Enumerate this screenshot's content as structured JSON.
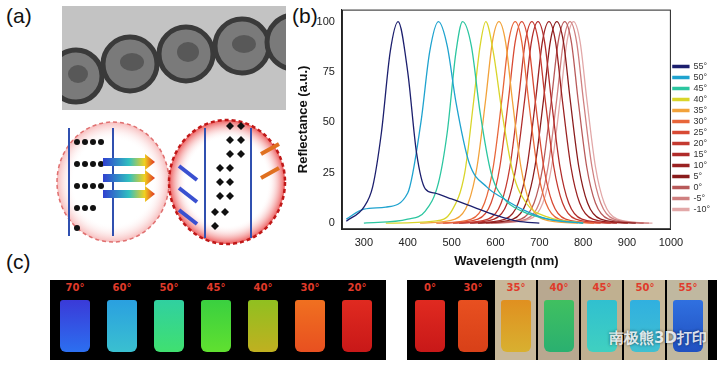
{
  "panels": {
    "a": {
      "label": "(a)"
    },
    "b": {
      "label": "(b)"
    },
    "c": {
      "label": "(c)",
      "left_vials": [
        "70°",
        "60°",
        "50°",
        "45°",
        "40°",
        "30°",
        "20°"
      ],
      "right_vials": [
        "0°",
        "30°",
        "35°",
        "40°",
        "45°",
        "50°",
        "55°"
      ],
      "watermark": "南极熊3D打印"
    }
  },
  "chart_data": {
    "type": "line",
    "x_label": "Wavelength (nm)",
    "y_label": "Reflectance (a.u.)",
    "xlim": [
      250,
      1000
    ],
    "xticks": [
      300,
      400,
      500,
      600,
      700,
      800,
      900,
      1000
    ],
    "ylim": [
      -3,
      106
    ],
    "yticks": [
      0,
      25,
      50,
      75,
      100
    ],
    "grid": false,
    "legend": "right",
    "marker": "none",
    "line_style": "solid",
    "series": [
      {
        "name": "55°",
        "color": "#1c1f6e",
        "x": [
          260,
          300,
          320,
          340,
          360,
          378,
          400,
          420,
          440,
          460,
          500,
          550,
          600,
          650,
          700
        ],
        "values": [
          1,
          8,
          18,
          45,
          85,
          100,
          75,
          35,
          17,
          15,
          12,
          8,
          4,
          1,
          0
        ]
      },
      {
        "name": "50°",
        "color": "#1fa3cf",
        "x": [
          260,
          300,
          350,
          400,
          430,
          450,
          470,
          490,
          510,
          540,
          580,
          620,
          660,
          720,
          800
        ],
        "values": [
          2,
          7,
          8,
          15,
          50,
          85,
          100,
          88,
          60,
          30,
          18,
          12,
          7,
          2,
          0
        ]
      },
      {
        "name": "45°",
        "color": "#2cc6a0",
        "x": [
          300,
          400,
          440,
          470,
          490,
          510,
          525,
          545,
          565,
          590,
          620,
          660,
          720,
          800
        ],
        "values": [
          0,
          2,
          6,
          20,
          45,
          85,
          100,
          88,
          55,
          25,
          12,
          6,
          2,
          0
        ]
      },
      {
        "name": "40°",
        "color": "#d9d52a",
        "x": [
          350,
          460,
          500,
          530,
          550,
          565,
          578,
          595,
          615,
          640,
          670,
          720,
          800
        ],
        "values": [
          0,
          1,
          6,
          25,
          60,
          88,
          100,
          85,
          55,
          25,
          10,
          3,
          0
        ]
      },
      {
        "name": "35°",
        "color": "#f2a23a",
        "x": [
          428,
          508,
          538,
          558,
          578,
          593,
          608,
          623,
          638,
          658,
          678,
          708,
          788
        ],
        "values": [
          0,
          2,
          10,
          28,
          62,
          90,
          100,
          90,
          62,
          28,
          10,
          2,
          0
        ]
      },
      {
        "name": "30°",
        "color": "#e8663a",
        "x": [
          465,
          545,
          575,
          595,
          615,
          630,
          645,
          660,
          675,
          695,
          715,
          745,
          825
        ],
        "values": [
          0,
          2,
          10,
          28,
          62,
          90,
          100,
          90,
          62,
          28,
          10,
          2,
          0
        ]
      },
      {
        "name": "25°",
        "color": "#d84a34",
        "x": [
          480,
          560,
          590,
          610,
          630,
          645,
          660,
          675,
          690,
          710,
          730,
          760,
          840
        ],
        "values": [
          0,
          2,
          10,
          28,
          62,
          90,
          100,
          90,
          62,
          28,
          10,
          2,
          0
        ]
      },
      {
        "name": "20°",
        "color": "#c43a30",
        "x": [
          503,
          583,
          613,
          633,
          653,
          668,
          683,
          698,
          713,
          733,
          753,
          783,
          863
        ],
        "values": [
          0,
          2,
          10,
          28,
          62,
          90,
          100,
          90,
          62,
          28,
          10,
          2,
          0
        ]
      },
      {
        "name": "15°",
        "color": "#b02c2a",
        "x": [
          517,
          597,
          627,
          647,
          667,
          682,
          697,
          712,
          727,
          747,
          767,
          797,
          877
        ],
        "values": [
          0,
          2,
          10,
          28,
          62,
          90,
          100,
          90,
          62,
          28,
          10,
          2,
          0
        ]
      },
      {
        "name": "10°",
        "color": "#9a2222",
        "x": [
          542,
          622,
          652,
          672,
          692,
          707,
          722,
          737,
          752,
          772,
          792,
          822,
          902
        ],
        "values": [
          0,
          2,
          10,
          28,
          62,
          90,
          100,
          90,
          62,
          28,
          10,
          2,
          0
        ]
      },
      {
        "name": "5°",
        "color": "#8a1c1c",
        "x": [
          560,
          640,
          670,
          690,
          710,
          725,
          740,
          755,
          770,
          790,
          810,
          840,
          920
        ],
        "values": [
          0,
          2,
          10,
          28,
          62,
          90,
          100,
          90,
          62,
          28,
          10,
          2,
          0
        ]
      },
      {
        "name": "0°",
        "color": "#b85a5a",
        "x": [
          578,
          658,
          688,
          708,
          728,
          743,
          758,
          773,
          788,
          808,
          828,
          858,
          938
        ],
        "values": [
          0,
          2,
          10,
          28,
          62,
          90,
          100,
          90,
          62,
          28,
          10,
          2,
          0
        ]
      },
      {
        "name": "-5°",
        "color": "#cf8080",
        "x": [
          590,
          670,
          700,
          720,
          740,
          755,
          770,
          785,
          800,
          820,
          840,
          870,
          950
        ],
        "values": [
          0,
          2,
          10,
          28,
          62,
          90,
          100,
          90,
          62,
          28,
          10,
          2,
          0
        ]
      },
      {
        "name": "-10°",
        "color": "#e2a8a8",
        "x": [
          598,
          678,
          708,
          728,
          748,
          763,
          778,
          793,
          808,
          828,
          848,
          878,
          958
        ],
        "values": [
          0,
          2,
          10,
          28,
          62,
          90,
          100,
          90,
          62,
          28,
          10,
          2,
          0
        ]
      }
    ]
  }
}
